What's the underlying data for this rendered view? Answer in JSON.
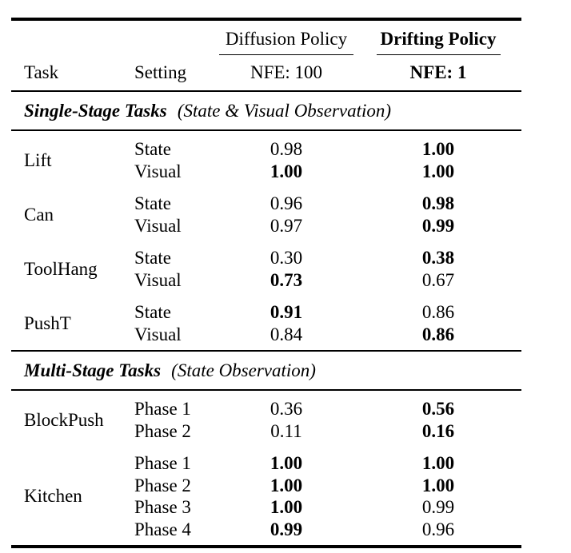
{
  "page": {
    "background": "#ffffff",
    "text_color": "#000000"
  },
  "table": {
    "header": {
      "col_task": "Task",
      "col_setting": "Setting",
      "groups": [
        {
          "label": "Diffusion Policy",
          "nfe": "NFE: 100",
          "bold": false
        },
        {
          "label": "Drifting Policy",
          "nfe": "NFE: 1",
          "bold": true
        }
      ]
    },
    "sections": [
      {
        "title": "Single-Stage Tasks",
        "subtitle": "(State & Visual Observation)",
        "groups": [
          {
            "task": "Lift",
            "rows": [
              {
                "setting": "State",
                "diffusion": {
                  "value": "0.98",
                  "bold": false
                },
                "drifting": {
                  "value": "1.00",
                  "bold": true
                }
              },
              {
                "setting": "Visual",
                "diffusion": {
                  "value": "1.00",
                  "bold": true
                },
                "drifting": {
                  "value": "1.00",
                  "bold": true
                }
              }
            ]
          },
          {
            "task": "Can",
            "rows": [
              {
                "setting": "State",
                "diffusion": {
                  "value": "0.96",
                  "bold": false
                },
                "drifting": {
                  "value": "0.98",
                  "bold": true
                }
              },
              {
                "setting": "Visual",
                "diffusion": {
                  "value": "0.97",
                  "bold": false
                },
                "drifting": {
                  "value": "0.99",
                  "bold": true
                }
              }
            ]
          },
          {
            "task": "ToolHang",
            "rows": [
              {
                "setting": "State",
                "diffusion": {
                  "value": "0.30",
                  "bold": false
                },
                "drifting": {
                  "value": "0.38",
                  "bold": true
                }
              },
              {
                "setting": "Visual",
                "diffusion": {
                  "value": "0.73",
                  "bold": true
                },
                "drifting": {
                  "value": "0.67",
                  "bold": false
                }
              }
            ]
          },
          {
            "task": "PushT",
            "rows": [
              {
                "setting": "State",
                "diffusion": {
                  "value": "0.91",
                  "bold": true
                },
                "drifting": {
                  "value": "0.86",
                  "bold": false
                }
              },
              {
                "setting": "Visual",
                "diffusion": {
                  "value": "0.84",
                  "bold": false
                },
                "drifting": {
                  "value": "0.86",
                  "bold": true
                }
              }
            ]
          }
        ]
      },
      {
        "title": "Multi-Stage Tasks",
        "subtitle": "(State Observation)",
        "groups": [
          {
            "task": "BlockPush",
            "rows": [
              {
                "setting": "Phase 1",
                "diffusion": {
                  "value": "0.36",
                  "bold": false
                },
                "drifting": {
                  "value": "0.56",
                  "bold": true
                }
              },
              {
                "setting": "Phase 2",
                "diffusion": {
                  "value": "0.11",
                  "bold": false
                },
                "drifting": {
                  "value": "0.16",
                  "bold": true
                }
              }
            ]
          },
          {
            "task": "Kitchen",
            "rows": [
              {
                "setting": "Phase 1",
                "diffusion": {
                  "value": "1.00",
                  "bold": true
                },
                "drifting": {
                  "value": "1.00",
                  "bold": true
                }
              },
              {
                "setting": "Phase 2",
                "diffusion": {
                  "value": "1.00",
                  "bold": true
                },
                "drifting": {
                  "value": "1.00",
                  "bold": true
                }
              },
              {
                "setting": "Phase 3",
                "diffusion": {
                  "value": "1.00",
                  "bold": true
                },
                "drifting": {
                  "value": "0.99",
                  "bold": false
                }
              },
              {
                "setting": "Phase 4",
                "diffusion": {
                  "value": "0.99",
                  "bold": true
                },
                "drifting": {
                  "value": "0.96",
                  "bold": false
                }
              }
            ]
          }
        ]
      }
    ]
  }
}
